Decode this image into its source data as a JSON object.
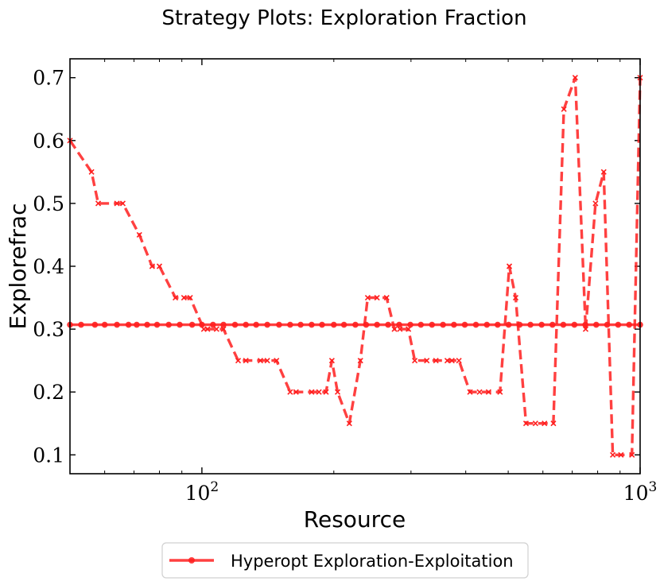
{
  "chart_data": {
    "type": "line",
    "title": "Strategy Plots: Exploration Fraction",
    "xlabel": "Resource",
    "ylabel": "Explorefrac",
    "xscale": "log",
    "xlim": [
      50,
      1000
    ],
    "ylim": [
      0.07,
      0.73
    ],
    "xticks": [
      {
        "value": 100,
        "label": "10",
        "exp": "2"
      },
      {
        "value": 1000,
        "label": "10",
        "exp": "3"
      }
    ],
    "yticks": [
      0.1,
      0.2,
      0.3,
      0.4,
      0.5,
      0.6,
      0.7
    ],
    "legend": {
      "position": "bottom-center",
      "entries": [
        "Hyperopt Exploration-Exploitation"
      ]
    },
    "color": "#ff1f1f",
    "series": [
      {
        "name": "Hyperopt Exploration-Exploitation",
        "style": "solid",
        "marker": "dot",
        "x": [
          50,
          53,
          57,
          60,
          64,
          68,
          71,
          75,
          79,
          84,
          89,
          95,
          100,
          106,
          112,
          119,
          126,
          133,
          141,
          150,
          159,
          168,
          178,
          188,
          200,
          211,
          224,
          237,
          251,
          266,
          282,
          299,
          316,
          335,
          355,
          376,
          398,
          422,
          447,
          473,
          501,
          531,
          562,
          596,
          631,
          668,
          708,
          750,
          794,
          841,
          891,
          944,
          1000
        ],
        "y": [
          0.307,
          0.307,
          0.307,
          0.307,
          0.307,
          0.307,
          0.307,
          0.307,
          0.307,
          0.307,
          0.307,
          0.307,
          0.307,
          0.307,
          0.307,
          0.307,
          0.307,
          0.307,
          0.307,
          0.307,
          0.307,
          0.307,
          0.307,
          0.307,
          0.307,
          0.307,
          0.307,
          0.307,
          0.307,
          0.307,
          0.307,
          0.307,
          0.307,
          0.307,
          0.307,
          0.307,
          0.307,
          0.307,
          0.307,
          0.307,
          0.307,
          0.307,
          0.307,
          0.307,
          0.307,
          0.307,
          0.307,
          0.307,
          0.307,
          0.307,
          0.307,
          0.307,
          0.307
        ]
      },
      {
        "name": "",
        "style": "dashed",
        "marker": "x",
        "x": [
          50,
          56,
          58,
          64,
          66,
          72,
          77,
          80,
          87,
          91,
          94,
          101,
          103,
          108,
          112,
          121,
          126,
          136,
          141,
          148,
          159,
          164,
          178,
          185,
          192,
          198,
          204,
          217,
          230,
          239,
          251,
          264,
          275,
          283,
          296,
          306,
          326,
          342,
          363,
          372,
          386,
          409,
          430,
          451,
          479,
          503,
          520,
          549,
          577,
          605,
          634,
          670,
          711,
          751,
          791,
          826,
          866,
          904,
          958,
          1000
        ],
        "y": [
          0.6,
          0.55,
          0.5,
          0.5,
          0.5,
          0.45,
          0.4,
          0.4,
          0.35,
          0.35,
          0.35,
          0.3,
          0.3,
          0.3,
          0.3,
          0.25,
          0.25,
          0.25,
          0.25,
          0.25,
          0.2,
          0.2,
          0.2,
          0.2,
          0.2,
          0.25,
          0.2,
          0.15,
          0.25,
          0.35,
          0.35,
          0.35,
          0.3,
          0.3,
          0.3,
          0.25,
          0.25,
          0.25,
          0.25,
          0.25,
          0.25,
          0.2,
          0.2,
          0.2,
          0.2,
          0.4,
          0.35,
          0.15,
          0.15,
          0.15,
          0.15,
          0.65,
          0.7,
          0.3,
          0.5,
          0.55,
          0.1,
          0.1,
          0.1,
          0.7
        ]
      }
    ]
  }
}
